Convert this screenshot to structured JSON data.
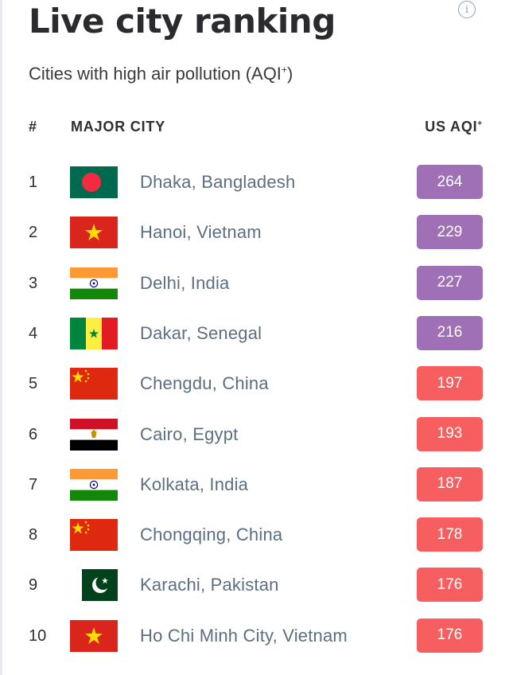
{
  "header": {
    "title": "Live city ranking",
    "subtitle": "Cities with high air pollution (AQI",
    "subtitle_sup": "+",
    "subtitle_end": ")"
  },
  "table": {
    "col_rank": "#",
    "col_city": "MAJOR CITY",
    "col_aqi": "US AQI",
    "col_aqi_sup": "+",
    "rows": [
      {
        "rank": "1",
        "city": "Dhaka, Bangladesh",
        "aqi": "264",
        "flag": "bangladesh-flag-icon",
        "color": "#a070b6"
      },
      {
        "rank": "2",
        "city": "Hanoi, Vietnam",
        "aqi": "229",
        "flag": "vietnam-flag-icon",
        "color": "#a070b6"
      },
      {
        "rank": "3",
        "city": "Delhi, India",
        "aqi": "227",
        "flag": "india-flag-icon",
        "color": "#a070b6"
      },
      {
        "rank": "4",
        "city": "Dakar, Senegal",
        "aqi": "216",
        "flag": "senegal-flag-icon",
        "color": "#a070b6"
      },
      {
        "rank": "5",
        "city": "Chengdu, China",
        "aqi": "197",
        "flag": "china-flag-icon",
        "color": "#f65e5f"
      },
      {
        "rank": "6",
        "city": "Cairo, Egypt",
        "aqi": "193",
        "flag": "egypt-flag-icon",
        "color": "#f65e5f"
      },
      {
        "rank": "7",
        "city": "Kolkata, India",
        "aqi": "187",
        "flag": "india-flag-icon",
        "color": "#f65e5f"
      },
      {
        "rank": "8",
        "city": "Chongqing, China",
        "aqi": "178",
        "flag": "china-flag-icon",
        "color": "#f65e5f"
      },
      {
        "rank": "9",
        "city": "Karachi, Pakistan",
        "aqi": "176",
        "flag": "pakistan-flag-icon",
        "color": "#f65e5f"
      },
      {
        "rank": "10",
        "city": "Ho Chi Minh City, Vietnam",
        "aqi": "176",
        "flag": "vietnam-flag-icon",
        "color": "#f65e5f"
      }
    ]
  }
}
